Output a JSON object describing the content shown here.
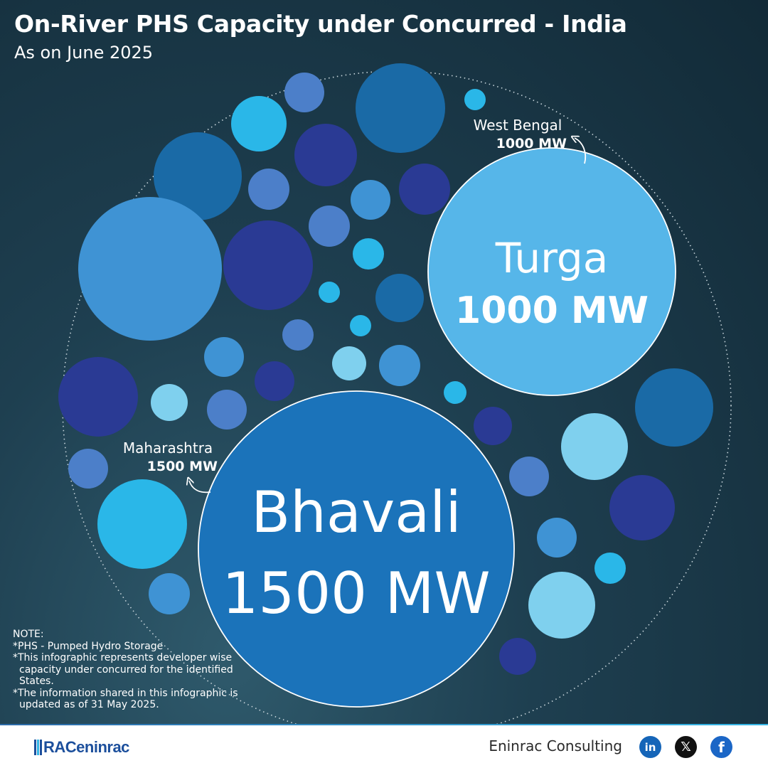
{
  "header": {
    "title": "On-River PHS Capacity under Concurred - India",
    "subtitle": "As on June 2025"
  },
  "chart_data": {
    "type": "bubble",
    "series": [
      {
        "project": "Turga",
        "state": "West Bengal",
        "value_label": "1000 MW",
        "value": 1000,
        "unit": "MW",
        "color": "#56b6e9"
      },
      {
        "project": "Bhavali",
        "state": "Maharashtra",
        "value_label": "1500 MW",
        "value": 1500,
        "unit": "MW",
        "color": "#1b73ba"
      }
    ],
    "decorative_palette": [
      "#1a6aa6",
      "#2a3a94",
      "#2ab7e8",
      "#4c7fc9",
      "#7fd0ee",
      "#3f93d4"
    ]
  },
  "note": {
    "heading": "NOTE:",
    "items": [
      "PHS - Pumped Hydro Storage",
      "This infographic represents developer wise capacity under concurred for the identified States.",
      "The information shared in this infographic is updated as of 31 May 2025."
    ]
  },
  "footer": {
    "logo_text": "RACeninrac",
    "company": "Eninrac Consulting",
    "social": [
      {
        "name": "linkedin-icon",
        "glyph": "in"
      },
      {
        "name": "x-icon",
        "glyph": "𝕏"
      },
      {
        "name": "facebook-icon",
        "glyph": "f"
      }
    ]
  }
}
